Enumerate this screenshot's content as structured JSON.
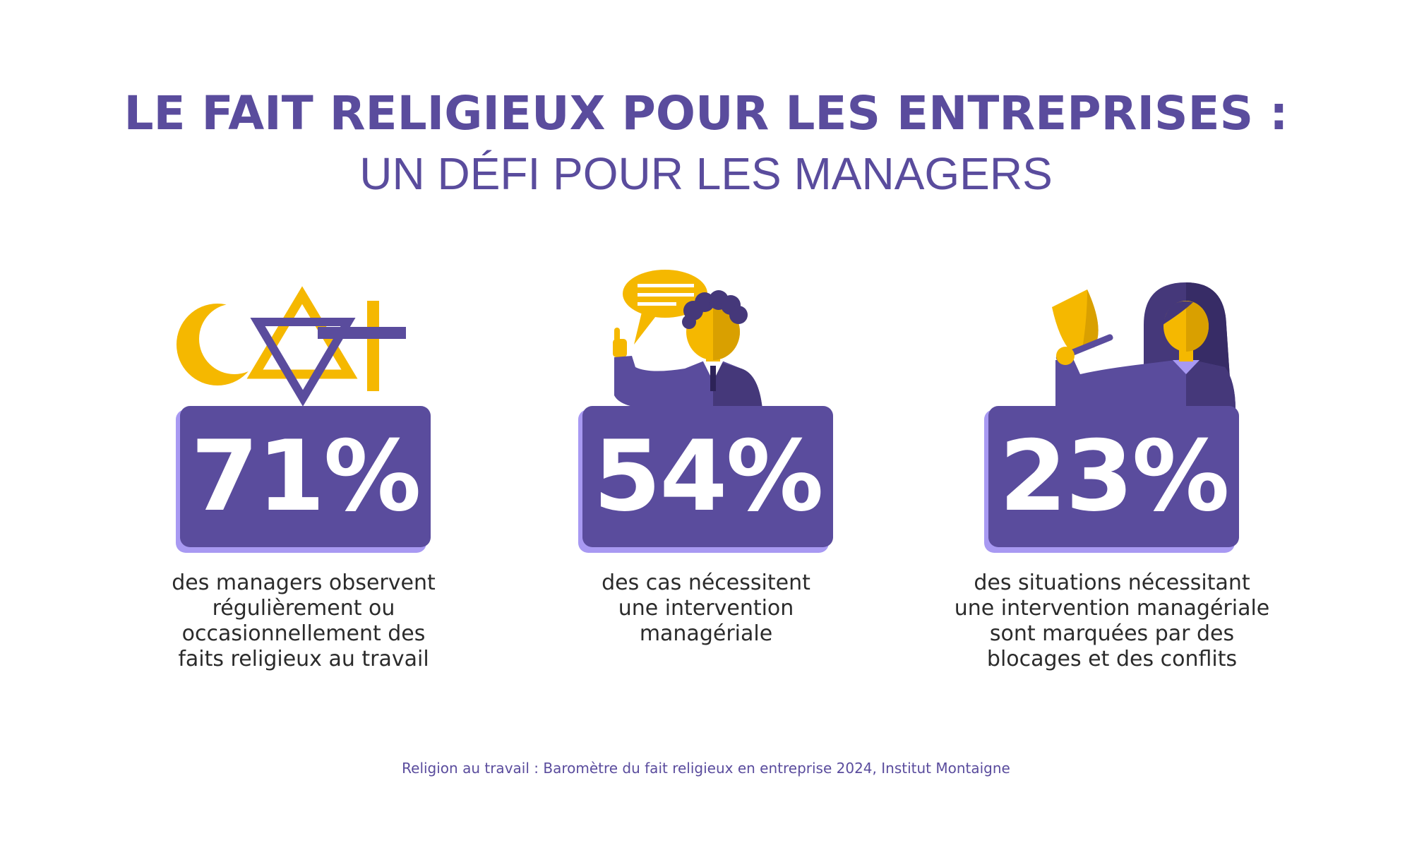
{
  "title": {
    "line1": "LE FAIT RELIGIEUX POUR LES ENTREPRISES :",
    "line2": "UN DÉFI POUR LES MANAGERS"
  },
  "colors": {
    "purple": "#5a4c9d",
    "light_purple": "#a899f2",
    "yellow": "#f5b800",
    "dark_purple": "#45387a"
  },
  "stats": [
    {
      "icon": "religious-symbols-icon",
      "value": "71%",
      "description": [
        "des managers observent",
        "régulièrement ou",
        "occasionnellement des",
        "faits religieux au travail"
      ]
    },
    {
      "icon": "speaking-manager-icon",
      "value": "54%",
      "description": [
        "des cas nécessitent",
        "une intervention",
        "managériale"
      ]
    },
    {
      "icon": "woman-bell-icon",
      "value": "23%",
      "description": [
        "des situations nécessitant",
        "une intervention managériale",
        "sont marquées par des",
        "blocages et des conflits"
      ]
    }
  ],
  "source": "Religion au travail : Baromètre du fait religieux en entreprise 2024, Institut Montaigne"
}
